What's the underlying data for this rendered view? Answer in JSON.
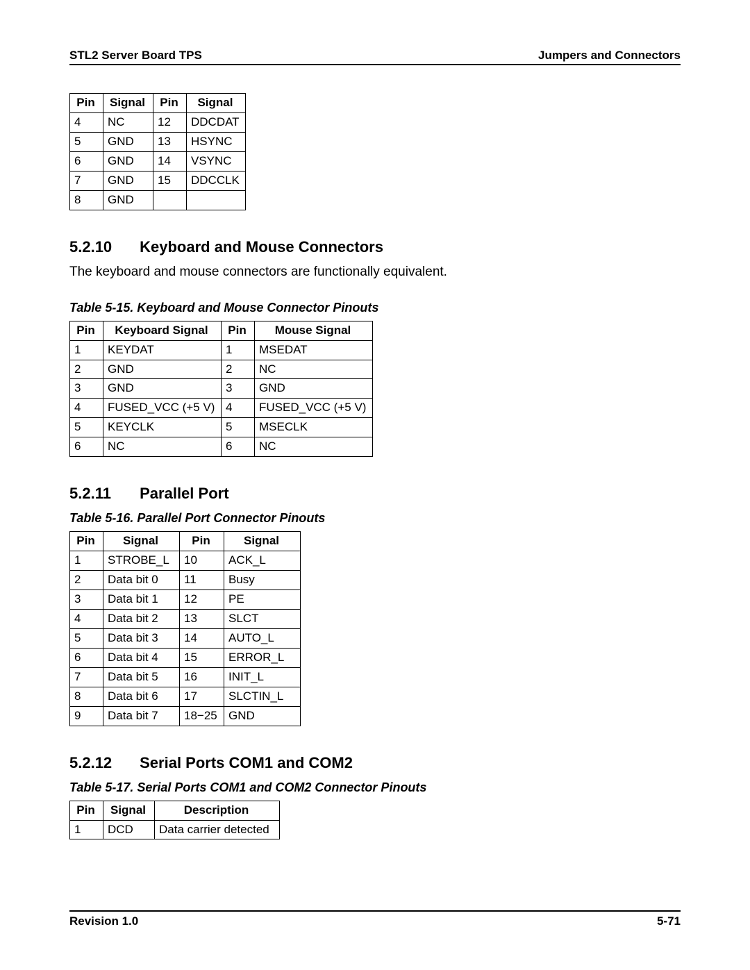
{
  "header": {
    "left": "STL2 Server Board TPS",
    "right": "Jumpers and Connectors"
  },
  "footer": {
    "left": "Revision 1.0",
    "right": "5-71"
  },
  "typography": {
    "body_fontsize": 19,
    "table_fontsize": 17,
    "heading_fontsize": 22,
    "caption_fontsize": 18,
    "text_color": "#000000",
    "background_color": "#ffffff",
    "border_color": "#000000"
  },
  "top_table": {
    "type": "table",
    "columns": [
      "Pin",
      "Signal",
      "Pin",
      "Signal"
    ],
    "rows": [
      [
        "4",
        "NC",
        "12",
        "DDCDAT"
      ],
      [
        "5",
        "GND",
        "13",
        "HSYNC"
      ],
      [
        "6",
        "GND",
        "14",
        "VSYNC"
      ],
      [
        "7",
        "GND",
        "15",
        "DDCCLK"
      ],
      [
        "8",
        "GND",
        "",
        ""
      ]
    ]
  },
  "section1": {
    "number": "5.2.10",
    "title": "Keyboard and Mouse Connectors",
    "paragraph": "The keyboard and mouse connectors are functionally equivalent.",
    "caption": "Table 5-15. Keyboard and Mouse Connector Pinouts",
    "table": {
      "type": "table",
      "columns": [
        "Pin",
        "Keyboard Signal",
        "Pin",
        "Mouse Signal"
      ],
      "rows": [
        [
          "1",
          "KEYDAT",
          "1",
          "MSEDAT"
        ],
        [
          "2",
          "GND",
          "2",
          "NC"
        ],
        [
          "3",
          "GND",
          "3",
          "GND"
        ],
        [
          "4",
          "FUSED_VCC (+5 V)",
          "4",
          "FUSED_VCC (+5 V)"
        ],
        [
          "5",
          "KEYCLK",
          "5",
          "MSECLK"
        ],
        [
          "6",
          "NC",
          "6",
          "NC"
        ]
      ]
    }
  },
  "section2": {
    "number": "5.2.11",
    "title": "Parallel Port",
    "caption": "Table 5-16. Parallel Port Connector Pinouts",
    "table": {
      "type": "table",
      "columns": [
        "Pin",
        "Signal",
        "Pin",
        "Signal"
      ],
      "rows": [
        [
          "1",
          "STROBE_L",
          "10",
          "ACK_L"
        ],
        [
          "2",
          "Data bit 0",
          "11",
          "Busy"
        ],
        [
          "3",
          "Data bit 1",
          "12",
          "PE"
        ],
        [
          "4",
          "Data bit 2",
          "13",
          "SLCT"
        ],
        [
          "5",
          "Data bit 3",
          "14",
          "AUTO_L"
        ],
        [
          "6",
          "Data bit 4",
          "15",
          "ERROR_L"
        ],
        [
          "7",
          "Data bit 5",
          "16",
          "INIT_L"
        ],
        [
          "8",
          "Data bit 6",
          "17",
          "SLCTIN_L"
        ],
        [
          "9",
          "Data bit 7",
          "18−25",
          "GND"
        ]
      ]
    }
  },
  "section3": {
    "number": "5.2.12",
    "title": "Serial Ports COM1 and COM2",
    "caption": "Table 5-17. Serial Ports COM1 and COM2 Connector Pinouts",
    "table": {
      "type": "table",
      "columns": [
        "Pin",
        "Signal",
        "Description"
      ],
      "rows": [
        [
          "1",
          "DCD",
          "Data carrier detected"
        ]
      ]
    }
  }
}
